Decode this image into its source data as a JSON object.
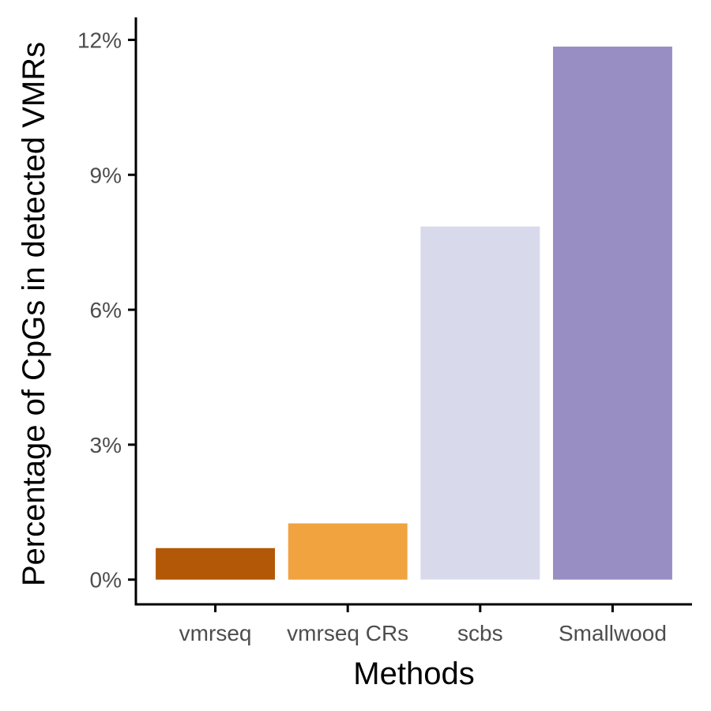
{
  "chart_data": {
    "type": "bar",
    "title": "",
    "xlabel": "Methods",
    "ylabel": "Percentage of CpGs in detected VMRs",
    "categories": [
      "vmrseq",
      "vmrseq CRs",
      "scbs",
      "Smallwood"
    ],
    "values": [
      0.7,
      1.25,
      7.85,
      11.85
    ],
    "colors": [
      "#b35806",
      "#f1a340",
      "#d8daeb",
      "#998ec3"
    ],
    "ylim": [
      -0.55,
      12.5
    ],
    "yticks": [
      0,
      3,
      6,
      9,
      12
    ],
    "ytick_labels": [
      "0%",
      "3%",
      "6%",
      "9%",
      "12%"
    ],
    "grid": false,
    "legend": "none"
  }
}
